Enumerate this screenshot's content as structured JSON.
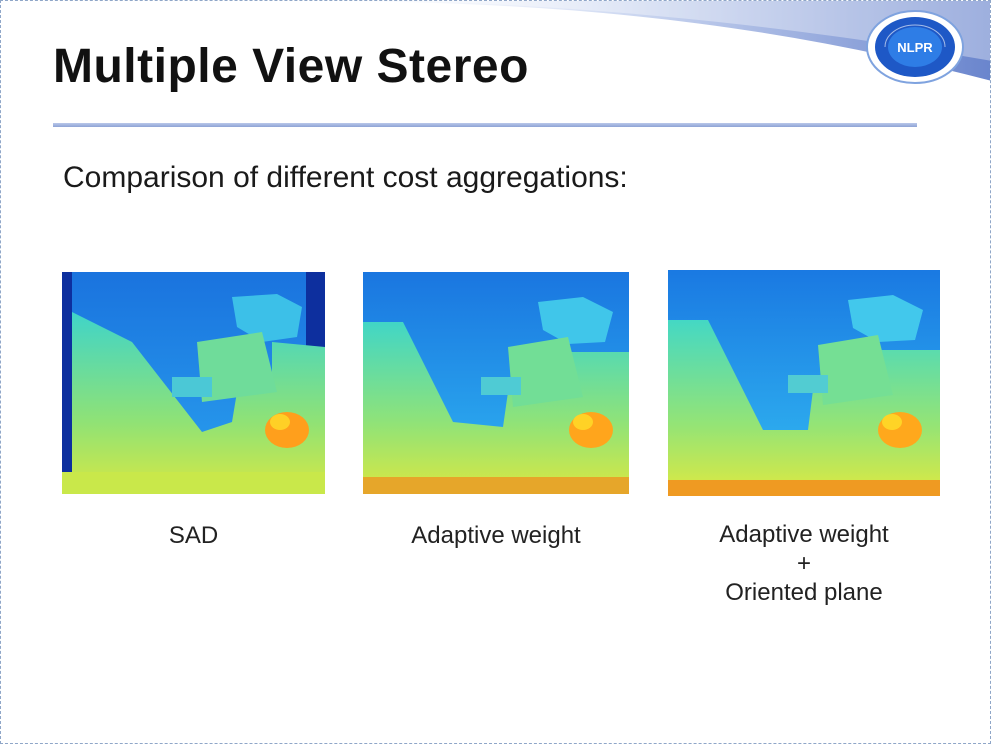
{
  "slide": {
    "title": "Multiple View Stereo",
    "subtitle": "Comparison of different cost aggregations:",
    "logo_text": "NLPR"
  },
  "panels": [
    {
      "caption_lines": [
        "SAD"
      ]
    },
    {
      "caption_lines": [
        "Adaptive weight"
      ]
    },
    {
      "caption_lines": [
        "Adaptive weight",
        "+",
        "Oriented plane"
      ]
    }
  ],
  "colors": {
    "title_rule": "#8ea3d6",
    "swoosh": "#5b78c8",
    "disparity_far": "#1e90e8",
    "disparity_mid": "#7fe07a",
    "disparity_near": "#ffb01e"
  }
}
